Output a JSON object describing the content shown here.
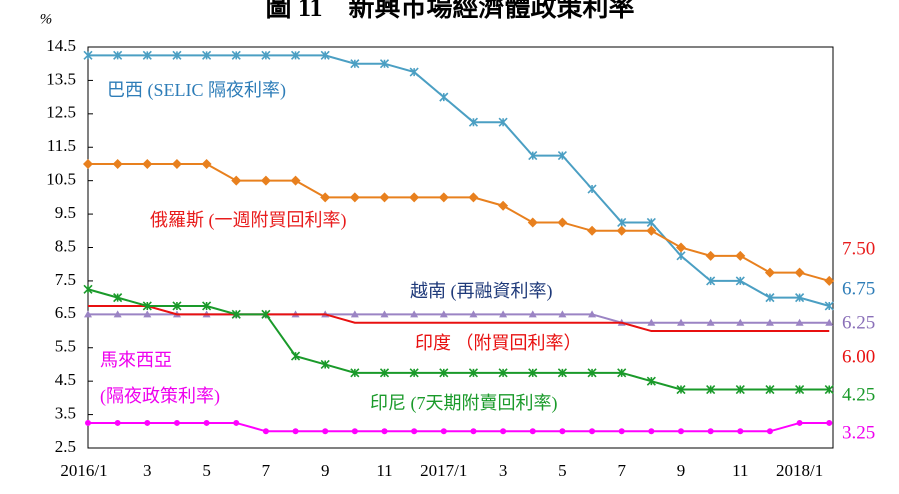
{
  "chart_data": {
    "type": "line",
    "title": "圖 11　新興市場經濟體政策利率",
    "y_unit": "%",
    "categories": [
      "2016/1",
      null,
      "3",
      null,
      "5",
      null,
      "7",
      null,
      "9",
      null,
      "11",
      null,
      "2017/1",
      null,
      "3",
      null,
      "5",
      null,
      "7",
      null,
      "9",
      null,
      "11",
      null,
      "2018/1",
      null
    ],
    "ylim": [
      2.5,
      14.5
    ],
    "yticks": [
      {
        "value": 2.5,
        "label": "2.5"
      },
      {
        "value": 3.5,
        "label": "3.5"
      },
      {
        "value": 4.5,
        "label": "4.5"
      },
      {
        "value": 5.5,
        "label": "5.5"
      },
      {
        "value": 6.5,
        "label": "6.5"
      },
      {
        "value": 7.5,
        "label": "7.5"
      },
      {
        "value": 8.5,
        "label": "8.5"
      },
      {
        "value": 9.5,
        "label": "9.5"
      },
      {
        "value": 10.5,
        "label": "10.5"
      },
      {
        "value": 11.5,
        "label": "11.5"
      },
      {
        "value": 12.5,
        "label": "12.5"
      },
      {
        "value": 13.5,
        "label": "13.5"
      },
      {
        "value": 14.5,
        "label": "14.5"
      }
    ],
    "grid": false,
    "series": [
      {
        "name": [
          "巴西 (SELIC 隔夜利率)"
        ],
        "color": "#4b9fc3",
        "label_color": "#2e7db8",
        "marker": "star",
        "values": [
          14.25,
          14.25,
          14.25,
          14.25,
          14.25,
          14.25,
          14.25,
          14.25,
          14.25,
          14.0,
          14.0,
          13.75,
          13.0,
          12.25,
          12.25,
          11.25,
          11.25,
          10.25,
          9.25,
          9.25,
          8.25,
          7.5,
          7.5,
          7.0,
          7.0,
          6.75
        ],
        "end_label": "6.75",
        "end_label_color": "#2e7db8"
      },
      {
        "name": [
          "俄羅斯 (一週附買回利率)"
        ],
        "color": "#e8801e",
        "label_color": "#e81c1c",
        "marker": "diamond",
        "values": [
          11.0,
          11.0,
          11.0,
          11.0,
          11.0,
          10.5,
          10.5,
          10.5,
          10.0,
          10.0,
          10.0,
          10.0,
          10.0,
          10.0,
          9.75,
          9.25,
          9.25,
          9.0,
          9.0,
          9.0,
          8.5,
          8.25,
          8.25,
          7.75,
          7.75,
          7.5
        ],
        "end_label": "7.50",
        "end_label_color": "#e81c1c"
      },
      {
        "name": [
          "越南 (再融資利率)"
        ],
        "color": "#9b84c4",
        "label_color": "#1f3a7a",
        "marker": "triangle",
        "values": [
          6.5,
          6.5,
          6.5,
          6.5,
          6.5,
          6.5,
          6.5,
          6.5,
          6.5,
          6.5,
          6.5,
          6.5,
          6.5,
          6.5,
          6.5,
          6.5,
          6.5,
          6.5,
          6.25,
          6.25,
          6.25,
          6.25,
          6.25,
          6.25,
          6.25,
          6.25
        ],
        "end_label": "6.25",
        "end_label_color": "#8a6fb8"
      },
      {
        "name": [
          "印度 （附買回利率）"
        ],
        "color": "#e81010",
        "label_color": "#e81010",
        "marker": "none",
        "values": [
          6.75,
          6.75,
          6.75,
          6.5,
          6.5,
          6.5,
          6.5,
          6.5,
          6.5,
          6.25,
          6.25,
          6.25,
          6.25,
          6.25,
          6.25,
          6.25,
          6.25,
          6.25,
          6.25,
          6.0,
          6.0,
          6.0,
          6.0,
          6.0,
          6.0,
          6.0
        ],
        "end_label": "6.00",
        "end_label_color": "#e81010"
      },
      {
        "name": [
          "馬來西亞",
          "(隔夜政策利率)"
        ],
        "color": "#ff00ff",
        "label_color": "#ee00ee",
        "marker": "circle",
        "values": [
          3.25,
          3.25,
          3.25,
          3.25,
          3.25,
          3.25,
          3.0,
          3.0,
          3.0,
          3.0,
          3.0,
          3.0,
          3.0,
          3.0,
          3.0,
          3.0,
          3.0,
          3.0,
          3.0,
          3.0,
          3.0,
          3.0,
          3.0,
          3.0,
          3.25,
          3.25
        ],
        "end_label": "3.25",
        "end_label_color": "#ee00ee"
      },
      {
        "name": [
          "印尼 (7天期附賣回利率)"
        ],
        "color": "#1a9a2a",
        "label_color": "#1a9a2a",
        "marker": "star",
        "values": [
          7.25,
          7.0,
          6.75,
          6.75,
          6.75,
          6.5,
          6.5,
          5.25,
          5.0,
          4.75,
          4.75,
          4.75,
          4.75,
          4.75,
          4.75,
          4.75,
          4.75,
          4.75,
          4.75,
          4.5,
          4.25,
          4.25,
          4.25,
          4.25,
          4.25,
          4.25
        ],
        "end_label": "4.25",
        "end_label_color": "#1a9a2a"
      }
    ]
  }
}
